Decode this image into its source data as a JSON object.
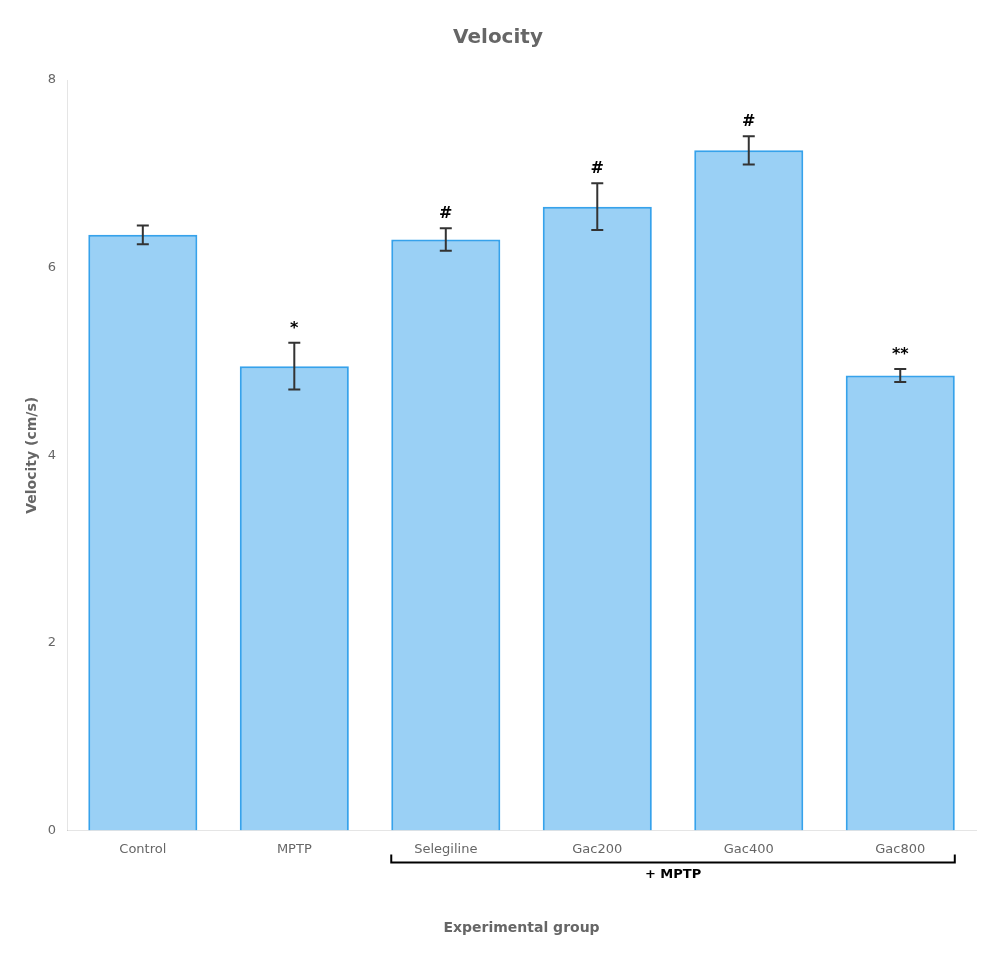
{
  "chart_data": {
    "type": "bar",
    "title": "Velocity",
    "xlabel": "Experimental group",
    "ylabel": "Velocity (cm/s)",
    "categories": [
      "Control",
      "MPTP",
      "Selegiline",
      "Gac200",
      "Gac400",
      "Gac800"
    ],
    "values": [
      6.35,
      4.95,
      6.3,
      6.65,
      7.25,
      4.85
    ],
    "errors": [
      0.1,
      0.25,
      0.12,
      0.25,
      0.15,
      0.07
    ],
    "annotations": [
      null,
      "*",
      "#",
      "#",
      "#",
      "**"
    ],
    "bracket": {
      "label": "+ MPTP",
      "categories": [
        "Selegiline",
        "Gac200",
        "Gac400",
        "Gac800"
      ]
    },
    "ylim": [
      0,
      8
    ],
    "yticks": [
      0,
      2,
      4,
      6,
      8
    ],
    "grid": false
  }
}
